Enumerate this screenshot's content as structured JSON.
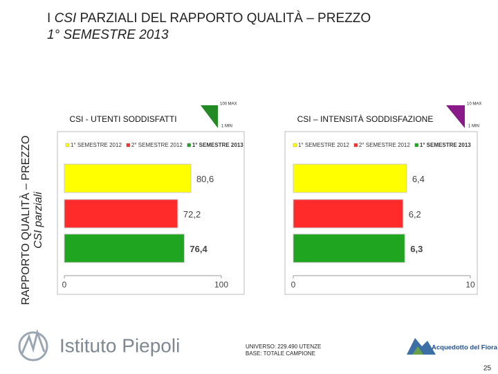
{
  "title": {
    "line1": [
      "I",
      "CSI",
      "PARZIALI DEL RAPPORTO QUALITÀ – PREZZO"
    ],
    "line2": "1° SEMESTRE 2013"
  },
  "side_title": {
    "main": "RAPPORTO QUALITÀ – PREZZO",
    "sub": "CSI parziali"
  },
  "chart_data": [
    {
      "type": "bar",
      "orientation": "horizontal",
      "title": "CSI - UTENTI SODDISFATTI",
      "categories": [
        "1° SEMESTRE 2012",
        "2° SEMESTRE 2012",
        "1° SEMESTRE 2013"
      ],
      "values": [
        80.6,
        72.2,
        76.4
      ],
      "value_labels": [
        "80,6",
        "72,2",
        "76,4"
      ],
      "colors": [
        "#ffff00",
        "#ff2a2a",
        "#1fa51f"
      ],
      "xlim": [
        0,
        100
      ],
      "xticks": [
        0,
        100
      ],
      "scale_max": "100 MAX",
      "scale_min": "1 MIN",
      "scale_color": "#238a23",
      "legend": true
    },
    {
      "type": "bar",
      "orientation": "horizontal",
      "title": "CSI – INTENSITÀ SODDISFAZIONE",
      "categories": [
        "1° SEMESTRE 2012",
        "2° SEMESTRE 2012",
        "1° SEMESTRE 2013"
      ],
      "values": [
        6.4,
        6.2,
        6.3
      ],
      "value_labels": [
        "6,4",
        "6,2",
        "6,3"
      ],
      "colors": [
        "#ffff00",
        "#ff2a2a",
        "#1fa51f"
      ],
      "xlim": [
        0,
        10
      ],
      "xticks": [
        0,
        10
      ],
      "scale_max": "10 MAX",
      "scale_min": "1 MIN",
      "scale_color": "#8a1a8a",
      "legend": true
    }
  ],
  "footer": {
    "universe": "UNIVERSO: 229.490 UTENZE",
    "base": "BASE: TOTALE CAMPIONE",
    "logo_left": "Istituto Piepoli",
    "logo_right": "Acquedotto del Fiora",
    "page_number": 25
  }
}
